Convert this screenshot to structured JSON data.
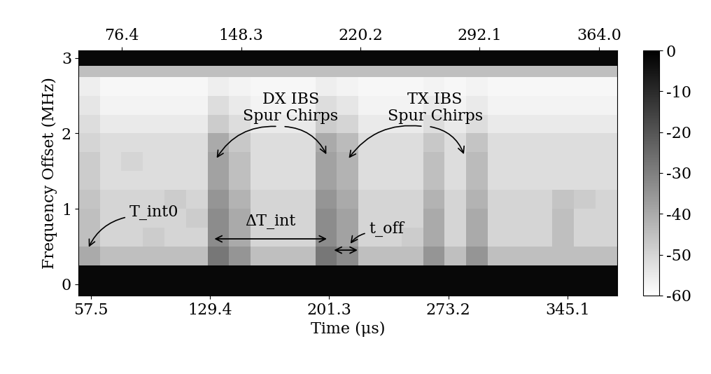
{
  "chart_data": {
    "type": "heatmap",
    "xlabel": "Time (μs)",
    "ylabel": "Frequency Offset (MHz)",
    "xlim": [
      50,
      375
    ],
    "ylim": [
      -0.15,
      3.1
    ],
    "xticks": [
      57.5,
      129.4,
      201.3,
      273.2,
      345.1
    ],
    "x2ticks": [
      76.4,
      148.3,
      220.2,
      292.1,
      364.0
    ],
    "yticks": [
      0,
      1,
      2,
      3
    ],
    "x_edges": [
      50,
      63,
      76,
      89,
      102,
      115,
      128,
      141,
      154,
      167,
      180,
      193,
      206,
      219,
      232,
      245,
      258,
      271,
      284,
      297,
      310,
      323,
      336,
      349,
      362,
      375
    ],
    "y_edges": [
      -0.15,
      0.25,
      0.5,
      0.75,
      1.0,
      1.25,
      1.5,
      1.75,
      2.0,
      2.25,
      2.5,
      2.75,
      2.9,
      3.1
    ],
    "cells": [
      [
        -2,
        -2,
        -2,
        -2,
        -2,
        -2,
        -2,
        -2,
        -2,
        -2,
        -2,
        -2,
        -2,
        -2,
        -2,
        -2,
        -2,
        -2,
        -2,
        -2,
        -2,
        -2,
        -2,
        -2,
        -2
      ],
      [
        -40,
        -45,
        -45,
        -45,
        -45,
        -45,
        -28,
        -35,
        -45,
        -45,
        -45,
        -28,
        -33,
        -45,
        -45,
        -45,
        -35,
        -45,
        -35,
        -45,
        -45,
        -45,
        -45,
        -45,
        -45
      ],
      [
        -45,
        -50,
        -50,
        -48,
        -50,
        -50,
        -33,
        -40,
        -50,
        -50,
        -50,
        -33,
        -38,
        -50,
        -50,
        -48,
        -40,
        -50,
        -40,
        -50,
        -50,
        -50,
        -45,
        -50,
        -50
      ],
      [
        -45,
        -50,
        -50,
        -50,
        -50,
        -48,
        -33,
        -40,
        -50,
        -50,
        -50,
        -33,
        -38,
        -50,
        -50,
        -50,
        -40,
        -50,
        -40,
        -50,
        -50,
        -50,
        -45,
        -50,
        -50
      ],
      [
        -46,
        -50,
        -50,
        -50,
        -48,
        -50,
        -35,
        -42,
        -50,
        -50,
        -50,
        -35,
        -40,
        -50,
        -50,
        -50,
        -42,
        -50,
        -42,
        -50,
        -50,
        -50,
        -46,
        -48,
        -50
      ],
      [
        -48,
        -52,
        -52,
        -52,
        -52,
        -52,
        -38,
        -45,
        -52,
        -52,
        -52,
        -38,
        -42,
        -52,
        -52,
        -52,
        -45,
        -52,
        -44,
        -52,
        -52,
        -52,
        -52,
        -52,
        -52
      ],
      [
        -48,
        -52,
        -50,
        -52,
        -52,
        -52,
        -38,
        -45,
        -52,
        -52,
        -52,
        -38,
        -42,
        -52,
        -52,
        -52,
        -45,
        -52,
        -44,
        -52,
        -52,
        -52,
        -52,
        -52,
        -52
      ],
      [
        -50,
        -52,
        -52,
        -52,
        -52,
        -52,
        -40,
        -47,
        -52,
        -52,
        -52,
        -40,
        -44,
        -52,
        -52,
        -52,
        -47,
        -52,
        -46,
        -52,
        -52,
        -52,
        -52,
        -52,
        -52
      ],
      [
        -52,
        -55,
        -55,
        -55,
        -55,
        -55,
        -48,
        -52,
        -55,
        -55,
        -55,
        -48,
        -50,
        -55,
        -55,
        -55,
        -52,
        -55,
        -52,
        -55,
        -55,
        -55,
        -55,
        -55,
        -55
      ],
      [
        -54,
        -57,
        -57,
        -57,
        -57,
        -57,
        -52,
        -55,
        -57,
        -57,
        -57,
        -52,
        -54,
        -57,
        -57,
        -57,
        -55,
        -57,
        -55,
        -57,
        -57,
        -57,
        -57,
        -57,
        -57
      ],
      [
        -56,
        -58,
        -58,
        -58,
        -58,
        -58,
        -56,
        -57,
        -58,
        -58,
        -58,
        -56,
        -57,
        -58,
        -58,
        -58,
        -57,
        -58,
        -57,
        -58,
        -58,
        -58,
        -58,
        -58,
        -58
      ],
      [
        -45,
        -45,
        -45,
        -45,
        -45,
        -45,
        -45,
        -45,
        -45,
        -45,
        -45,
        -45,
        -45,
        -45,
        -45,
        -45,
        -45,
        -45,
        -45,
        -45,
        -45,
        -45,
        -45,
        -45,
        -45
      ],
      [
        -2,
        -2,
        -2,
        -2,
        -2,
        -2,
        -2,
        -2,
        -2,
        -2,
        -2,
        -2,
        -2,
        -2,
        -2,
        -2,
        -2,
        -2,
        -2,
        -2,
        -2,
        -2,
        -2,
        -2,
        -2
      ]
    ],
    "colorbar": {
      "range": [
        -60,
        0
      ],
      "ticks": [
        0,
        -10,
        -20,
        -30,
        -40,
        -50,
        -60
      ]
    },
    "annotations": {
      "dx": "DX IBS\nSpur Chirps",
      "tx": "TX IBS\nSpur Chirps",
      "tint0": "T_int0",
      "dtint": "ΔT_int",
      "toff": "t_off"
    }
  }
}
